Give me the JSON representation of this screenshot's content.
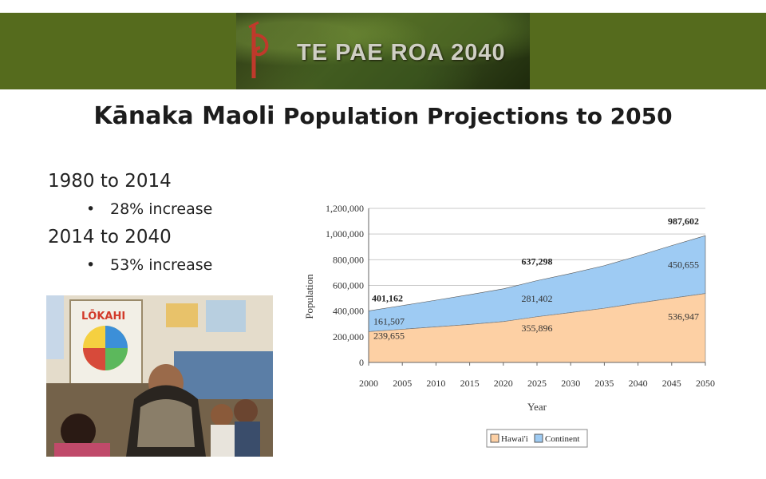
{
  "banner": {
    "title": "TE PAE ROA 2040",
    "colors": {
      "band": "#556b1d",
      "logo": "#c0392b"
    },
    "logo_icon": "koru-logo-icon"
  },
  "page": {
    "title_part1": "Kānaka Maoli",
    "title_part2": "Population Projections to 2050"
  },
  "bullets": [
    {
      "heading": "1980 to 2014",
      "detail": "28% increase"
    },
    {
      "heading": "2014 to 2040",
      "detail": "53% increase"
    }
  ],
  "photo": {
    "book_title": "LŌKAHI"
  },
  "chart_data": {
    "type": "area",
    "stacked": true,
    "x": [
      2000,
      2005,
      2010,
      2015,
      2020,
      2025,
      2030,
      2035,
      2040,
      2045,
      2050
    ],
    "xlabel": "Year",
    "ylabel": "Population",
    "ylim": [
      0,
      1200000
    ],
    "yticks": [
      0,
      200000,
      400000,
      600000,
      800000,
      1000000,
      1200000
    ],
    "ytick_labels": [
      "0",
      "200,000",
      "400,000",
      "600,000",
      "800,000",
      "1,000,000",
      "1,200,000"
    ],
    "grid": true,
    "legend_position": "bottom-right",
    "series": [
      {
        "name": "Hawai'i",
        "color": "#fdd0a4",
        "values": [
          239655,
          258000,
          277000,
          296000,
          318000,
          355896,
          388000,
          422000,
          462000,
          500000,
          536947
        ]
      },
      {
        "name": "Continent",
        "color": "#9ecbf3",
        "values": [
          161507,
          185000,
          208000,
          232000,
          255000,
          281402,
          305000,
          332000,
          368000,
          410000,
          450655
        ]
      }
    ],
    "totals": [
      {
        "x": 2000,
        "label": "401,162"
      },
      {
        "x": 2025,
        "label": "637,298"
      },
      {
        "x": 2050,
        "label": "987,602"
      }
    ],
    "annotations": [
      {
        "series": "Continent",
        "x": 2000,
        "label": "161,507"
      },
      {
        "series": "Hawai'i",
        "x": 2000,
        "label": "239,655"
      },
      {
        "series": "Continent",
        "x": 2025,
        "label": "281,402"
      },
      {
        "series": "Hawai'i",
        "x": 2025,
        "label": "355,896"
      },
      {
        "series": "Continent",
        "x": 2050,
        "label": "450,655"
      },
      {
        "series": "Hawai'i",
        "x": 2050,
        "label": "536,947"
      }
    ]
  }
}
